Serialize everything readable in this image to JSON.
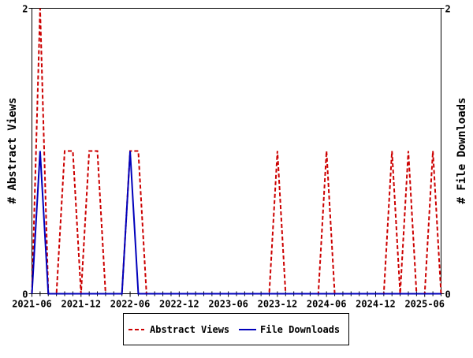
{
  "chart_data": {
    "type": "line",
    "title": "",
    "xlabel": "",
    "ylabel": "# Abstract Views",
    "y2label": "# File Downloads",
    "ylim": [
      0,
      2
    ],
    "y2lim": [
      0,
      2
    ],
    "y_ticks": [
      "0",
      "2"
    ],
    "y2_ticks": [
      "0",
      "2"
    ],
    "x": [
      "2021-06",
      "2021-07",
      "2021-08",
      "2021-09",
      "2021-10",
      "2021-11",
      "2021-12",
      "2022-01",
      "2022-02",
      "2022-03",
      "2022-04",
      "2022-05",
      "2022-06",
      "2022-07",
      "2022-08",
      "2022-09",
      "2022-10",
      "2022-11",
      "2022-12",
      "2023-01",
      "2023-02",
      "2023-03",
      "2023-04",
      "2023-05",
      "2023-06",
      "2023-07",
      "2023-08",
      "2023-09",
      "2023-10",
      "2023-11",
      "2023-12",
      "2024-01",
      "2024-02",
      "2024-03",
      "2024-04",
      "2024-05",
      "2024-06",
      "2024-07",
      "2024-08",
      "2024-09",
      "2024-10",
      "2024-11",
      "2024-12",
      "2025-01",
      "2025-02",
      "2025-03",
      "2025-04",
      "2025-05",
      "2025-06",
      "2025-07",
      "2025-08"
    ],
    "x_tick_labels": [
      "2021-06",
      "2021-12",
      "2022-06",
      "2022-12",
      "2023-06",
      "2023-12",
      "2024-06",
      "2024-12",
      "2025-06"
    ],
    "series": [
      {
        "name": "Abstract Views",
        "color": "#cc0000",
        "style": "dashed",
        "axis": "left",
        "values": [
          0,
          2,
          0,
          0,
          1,
          1,
          0,
          1,
          1,
          0,
          0,
          0,
          1,
          1,
          0,
          0,
          0,
          0,
          0,
          0,
          0,
          0,
          0,
          0,
          0,
          0,
          0,
          0,
          0,
          0,
          1,
          0,
          0,
          0,
          0,
          0,
          1,
          0,
          0,
          0,
          0,
          0,
          0,
          0,
          1,
          0,
          1,
          0,
          0,
          1,
          0
        ]
      },
      {
        "name": "File Downloads",
        "color": "#0000bb",
        "style": "solid",
        "axis": "right",
        "values": [
          0,
          1,
          0,
          0,
          0,
          0,
          0,
          0,
          0,
          0,
          0,
          0,
          1,
          0,
          0,
          0,
          0,
          0,
          0,
          0,
          0,
          0,
          0,
          0,
          0,
          0,
          0,
          0,
          0,
          0,
          0,
          0,
          0,
          0,
          0,
          0,
          0,
          0,
          0,
          0,
          0,
          0,
          0,
          0,
          0,
          0,
          0,
          0,
          0,
          0,
          0
        ]
      }
    ],
    "legend": {
      "placement": "bottom-center",
      "items": [
        "Abstract Views",
        "File Downloads"
      ]
    },
    "grid": false
  }
}
